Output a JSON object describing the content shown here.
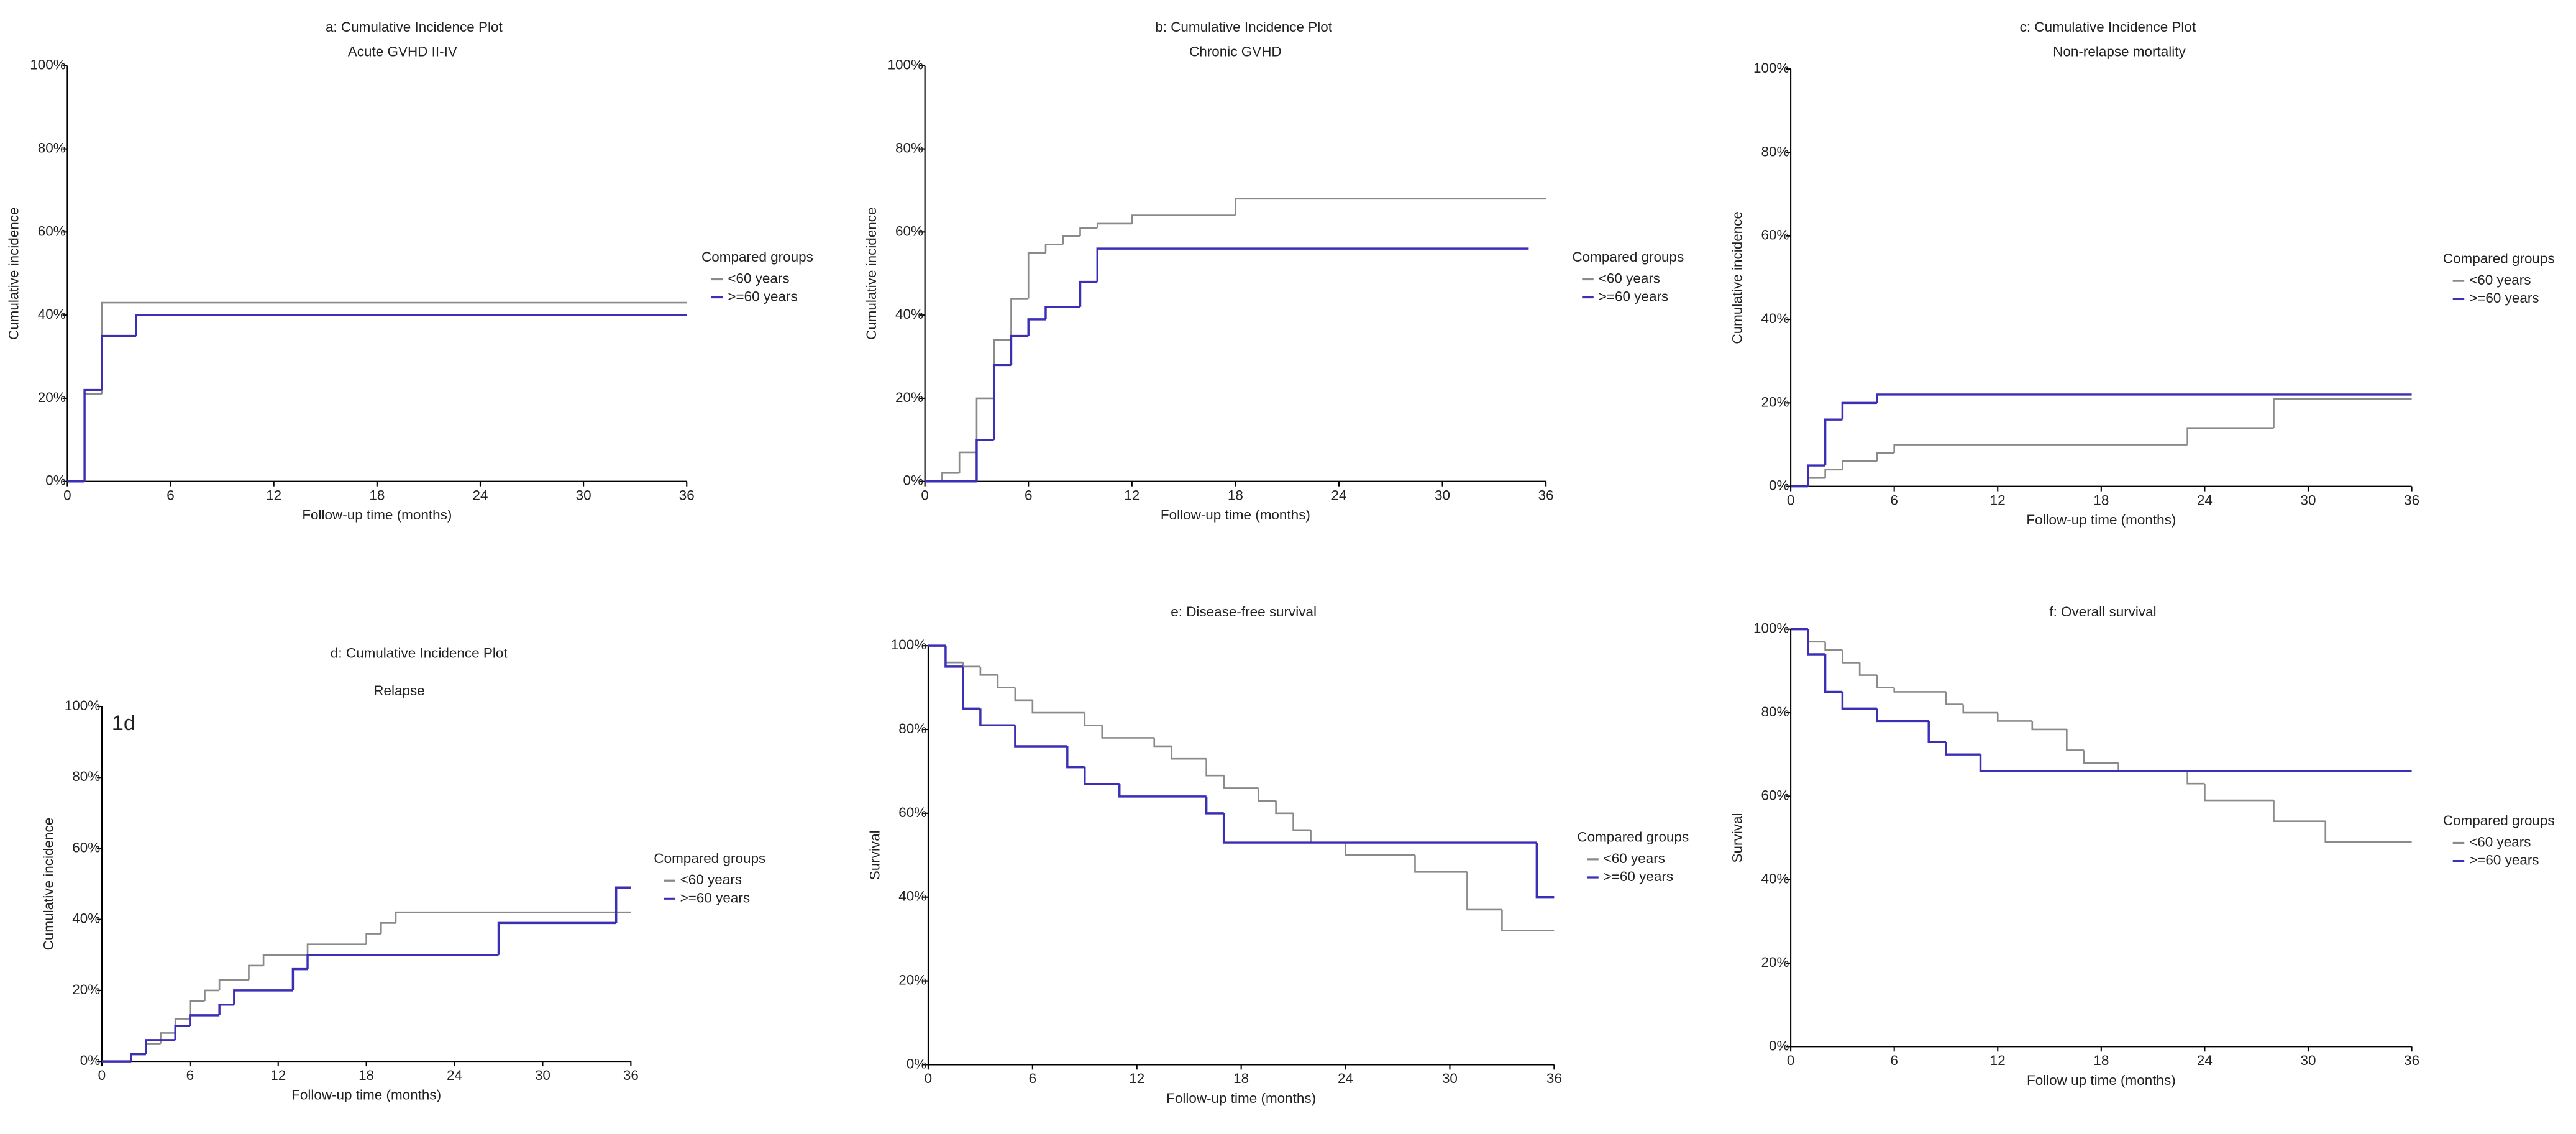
{
  "chart_data": [
    {
      "type": "step",
      "title": "a: Cumulative Incidence Plot",
      "subtitle": "Acute GVHD II-IV",
      "xlabel": "Follow-up time (months)",
      "ylabel": "Cumulative incidence",
      "legend_title": "Compared groups",
      "xlim": [
        0,
        36
      ],
      "xticks": [
        0,
        6,
        12,
        18,
        24,
        30,
        36
      ],
      "ylim": [
        0,
        100
      ],
      "yticks": [
        {
          "value": 0,
          "label": "0%"
        },
        {
          "value": 20,
          "label": "20%"
        },
        {
          "value": 40,
          "label": "40%"
        },
        {
          "value": 60,
          "label": "60%"
        },
        {
          "value": 80,
          "label": "80%"
        },
        {
          "value": 100,
          "label": "100%"
        }
      ],
      "series": [
        {
          "name": "<60 years",
          "color": "#8a8a8a",
          "x": [
            0,
            1,
            2,
            36
          ],
          "values": [
            0,
            21,
            43,
            43
          ]
        },
        {
          "name": ">=60 years",
          "color": "#3b2fb5",
          "x": [
            0,
            1,
            2,
            4,
            36
          ],
          "values": [
            0,
            22,
            35,
            40,
            40
          ]
        }
      ]
    },
    {
      "type": "step",
      "title": "b: Cumulative Incidence Plot",
      "subtitle": "Chronic GVHD",
      "xlabel": "Follow-up time (months)",
      "ylabel": "Cumulative incidence",
      "legend_title": "Compared groups",
      "xlim": [
        0,
        36
      ],
      "xticks": [
        0,
        6,
        12,
        18,
        24,
        30,
        36
      ],
      "ylim": [
        0,
        100
      ],
      "yticks": [
        {
          "value": 0,
          "label": "0%"
        },
        {
          "value": 20,
          "label": "20%"
        },
        {
          "value": 40,
          "label": "40%"
        },
        {
          "value": 60,
          "label": "60%"
        },
        {
          "value": 80,
          "label": "80%"
        },
        {
          "value": 100,
          "label": "100%"
        }
      ],
      "series": [
        {
          "name": "<60 years",
          "color": "#8a8a8a",
          "x": [
            0,
            1,
            2,
            3,
            4,
            5,
            6,
            7,
            8,
            9,
            10,
            12,
            18,
            36
          ],
          "values": [
            0,
            2,
            7,
            20,
            34,
            44,
            55,
            57,
            59,
            61,
            62,
            64,
            68,
            68
          ]
        },
        {
          "name": ">=60 years",
          "color": "#3b2fb5",
          "x": [
            0,
            3,
            4,
            5,
            6,
            7,
            9,
            10,
            35
          ],
          "values": [
            0,
            10,
            28,
            35,
            39,
            42,
            48,
            56,
            56
          ]
        }
      ]
    },
    {
      "type": "step",
      "title": "c: Cumulative Incidence Plot",
      "subtitle": "Non-relapse mortality",
      "xlabel": "Follow-up time (months)",
      "ylabel": "Cumulative incidence",
      "legend_title": "Compared groups",
      "xlim": [
        0,
        36
      ],
      "xticks": [
        0,
        6,
        12,
        18,
        24,
        30,
        36
      ],
      "ylim": [
        0,
        100
      ],
      "yticks": [
        {
          "value": 0,
          "label": "0%"
        },
        {
          "value": 20,
          "label": "20%"
        },
        {
          "value": 40,
          "label": "40%"
        },
        {
          "value": 60,
          "label": "60%"
        },
        {
          "value": 80,
          "label": "80%"
        },
        {
          "value": 100,
          "label": "100%"
        }
      ],
      "series": [
        {
          "name": "<60 years",
          "color": "#8a8a8a",
          "x": [
            0,
            1,
            2,
            3,
            5,
            6,
            23,
            28,
            36
          ],
          "values": [
            0,
            2,
            4,
            6,
            8,
            10,
            14,
            21,
            21
          ]
        },
        {
          "name": ">=60 years",
          "color": "#3b2fb5",
          "x": [
            0,
            1,
            2,
            3,
            5,
            36
          ],
          "values": [
            0,
            5,
            16,
            20,
            22,
            22
          ]
        }
      ]
    },
    {
      "type": "step",
      "title": "d: Cumulative Incidence Plot",
      "subtitle": "Relapse",
      "annotation": "1d",
      "xlabel": "Follow-up time (months)",
      "ylabel": "Cumulative incidence",
      "legend_title": "Compared groups",
      "xlim": [
        0,
        36
      ],
      "xticks": [
        0,
        6,
        12,
        18,
        24,
        30,
        36
      ],
      "ylim": [
        0,
        100
      ],
      "yticks": [
        {
          "value": 0,
          "label": "0%"
        },
        {
          "value": 20,
          "label": "20%"
        },
        {
          "value": 40,
          "label": "40%"
        },
        {
          "value": 60,
          "label": "60%"
        },
        {
          "value": 80,
          "label": "80%"
        },
        {
          "value": 100,
          "label": "100%"
        }
      ],
      "series": [
        {
          "name": "<60 years",
          "color": "#8a8a8a",
          "x": [
            0,
            2,
            3,
            4,
            5,
            6,
            7,
            8,
            10,
            11,
            14,
            18,
            19,
            20,
            36
          ],
          "values": [
            0,
            2,
            5,
            8,
            12,
            17,
            20,
            23,
            27,
            30,
            33,
            36,
            39,
            42,
            42
          ]
        },
        {
          "name": ">=60 years",
          "color": "#3b2fb5",
          "x": [
            0,
            2,
            3,
            5,
            6,
            8,
            9,
            13,
            14,
            27,
            35,
            36
          ],
          "values": [
            0,
            2,
            6,
            10,
            13,
            16,
            20,
            26,
            30,
            39,
            49,
            49
          ]
        }
      ]
    },
    {
      "type": "step",
      "title": "e: Disease-free survival",
      "xlabel": "Follow-up time (months)",
      "ylabel": "Survival",
      "legend_title": "Compared groups",
      "xlim": [
        0,
        36
      ],
      "xticks": [
        0,
        6,
        12,
        18,
        24,
        30,
        36
      ],
      "ylim": [
        0,
        100
      ],
      "yticks": [
        {
          "value": 0,
          "label": "0%"
        },
        {
          "value": 20,
          "label": "20%"
        },
        {
          "value": 40,
          "label": "40%"
        },
        {
          "value": 60,
          "label": "60%"
        },
        {
          "value": 80,
          "label": "80%"
        },
        {
          "value": 100,
          "label": "100%"
        }
      ],
      "series": [
        {
          "name": "<60 years",
          "color": "#8a8a8a",
          "x": [
            0,
            1,
            2,
            3,
            4,
            5,
            6,
            9,
            10,
            13,
            14,
            16,
            17,
            19,
            20,
            21,
            22,
            24,
            28,
            31,
            33,
            36
          ],
          "values": [
            100,
            96,
            95,
            93,
            90,
            87,
            84,
            81,
            78,
            76,
            73,
            69,
            66,
            63,
            60,
            56,
            53,
            50,
            46,
            37,
            32,
            32
          ]
        },
        {
          "name": ">=60 years",
          "color": "#3b2fb5",
          "x": [
            0,
            1,
            2,
            3,
            5,
            8,
            9,
            11,
            16,
            17,
            35,
            36
          ],
          "values": [
            100,
            95,
            85,
            81,
            76,
            71,
            67,
            64,
            60,
            53,
            40,
            40
          ]
        }
      ]
    },
    {
      "type": "step",
      "title": "f: Overall survival",
      "xlabel": "Follow up time (months)",
      "ylabel": "Survival",
      "legend_title": "Compared groups",
      "xlim": [
        0,
        36
      ],
      "xticks": [
        0,
        6,
        12,
        18,
        24,
        30,
        36
      ],
      "ylim": [
        0,
        100
      ],
      "yticks": [
        {
          "value": 0,
          "label": "0%"
        },
        {
          "value": 20,
          "label": "20%"
        },
        {
          "value": 40,
          "label": "40%"
        },
        {
          "value": 60,
          "label": "60%"
        },
        {
          "value": 80,
          "label": "80%"
        },
        {
          "value": 100,
          "label": "100%"
        }
      ],
      "series": [
        {
          "name": "<60 years",
          "color": "#8a8a8a",
          "x": [
            0,
            1,
            2,
            3,
            4,
            5,
            6,
            9,
            10,
            12,
            14,
            16,
            17,
            19,
            23,
            24,
            28,
            31,
            36
          ],
          "values": [
            100,
            97,
            95,
            92,
            89,
            86,
            85,
            82,
            80,
            78,
            76,
            71,
            68,
            66,
            63,
            59,
            54,
            49,
            49
          ]
        },
        {
          "name": ">=60 years",
          "color": "#3b2fb5",
          "x": [
            0,
            1,
            2,
            3,
            5,
            8,
            9,
            11,
            36
          ],
          "values": [
            100,
            94,
            85,
            81,
            78,
            73,
            70,
            66,
            66
          ]
        }
      ]
    }
  ]
}
